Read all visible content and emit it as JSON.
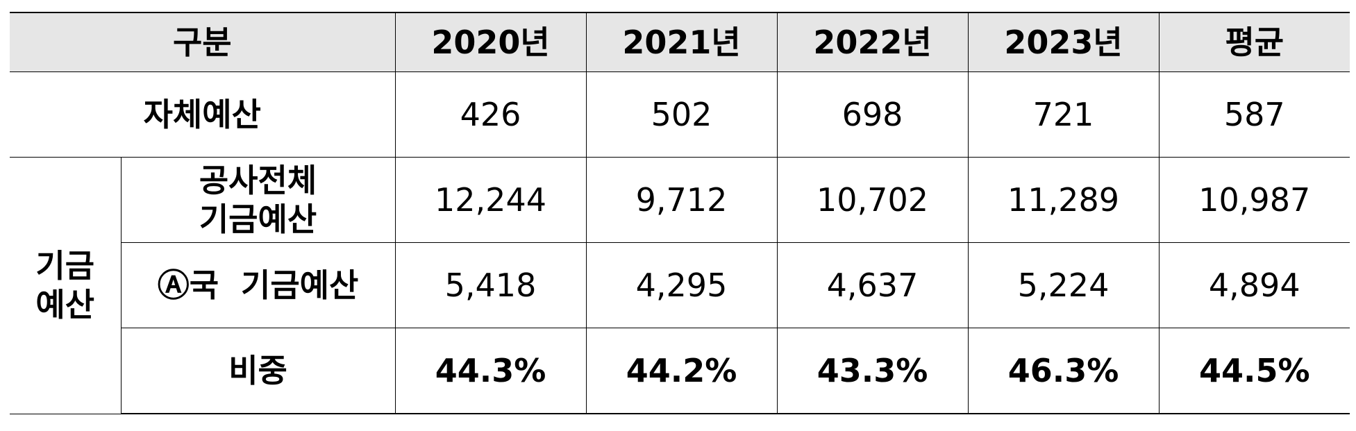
{
  "table": {
    "header": {
      "category": "구분",
      "years": [
        "2020년",
        "2021년",
        "2022년",
        "2023년"
      ],
      "average": "평균"
    },
    "own_budget": {
      "label": "자체예산",
      "values": [
        "426",
        "502",
        "698",
        "721"
      ],
      "average": "587"
    },
    "fund_group_label": {
      "line1": "기금",
      "line2": "예산"
    },
    "corp_total_fund": {
      "label_line1": "공사전체",
      "label_line2": "기금예산",
      "values": [
        "12,244",
        "9,712",
        "10,702",
        "11,289"
      ],
      "average": "10,987"
    },
    "dept_a_fund": {
      "label": "Ⓐ국  기금예산",
      "values": [
        "5,418",
        "4,295",
        "4,637",
        "5,224"
      ],
      "average": "4,894"
    },
    "ratio": {
      "label": "비중",
      "values": [
        "44.3%",
        "44.2%",
        "43.3%",
        "46.3%"
      ],
      "average": "44.5%"
    }
  }
}
